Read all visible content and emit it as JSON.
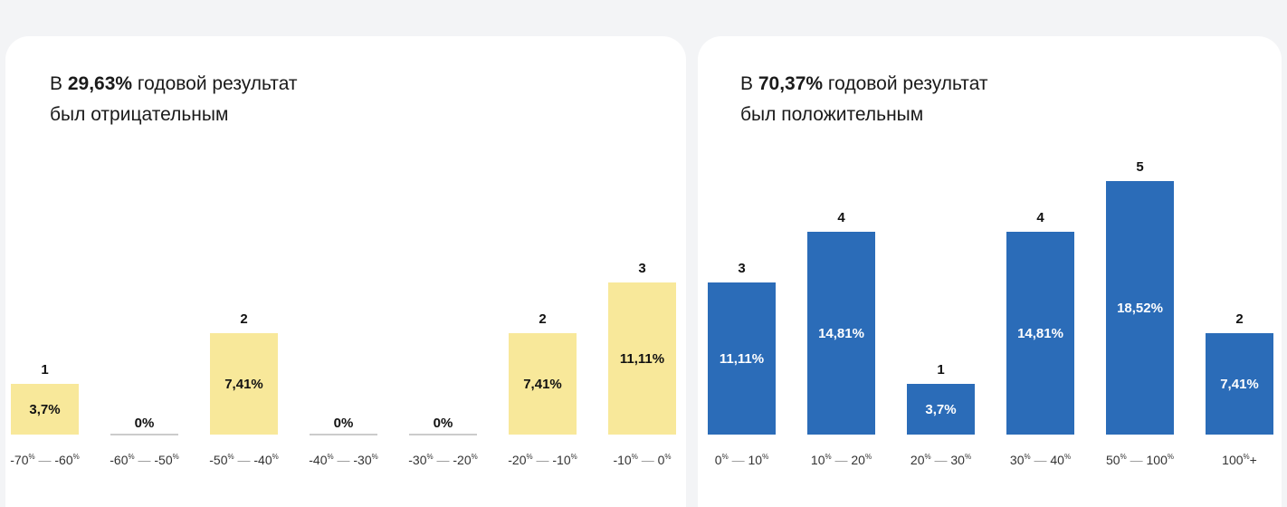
{
  "colors": {
    "negative_bar": "#f8e89a",
    "positive_bar": "#2b6cb8",
    "zero_line": "#999999",
    "negative_pct_text": "#111111",
    "positive_pct_text": "#ffffff"
  },
  "left": {
    "headline_prefix": "В ",
    "headline_value": "29,63%",
    "headline_line1_suffix": " годовой результат",
    "headline_line2": "был отрицательным"
  },
  "right": {
    "headline_prefix": "В ",
    "headline_value": "70,37%",
    "headline_line1_suffix": " годовой результат",
    "headline_line2": "был положительным"
  },
  "chart_data": [
    {
      "type": "bar",
      "categories": [
        "-70% — -60%",
        "-60% — -50%",
        "-50% — -40%",
        "-40% — -30%",
        "-30% — -20%",
        "-20% — -10%",
        "-10% — 0%"
      ],
      "ticks": [
        {
          "from": "-70",
          "to": "-60"
        },
        {
          "from": "-60",
          "to": "-50"
        },
        {
          "from": "-50",
          "to": "-40"
        },
        {
          "from": "-40",
          "to": "-30"
        },
        {
          "from": "-30",
          "to": "-20"
        },
        {
          "from": "-20",
          "to": "-10"
        },
        {
          "from": "-10",
          "to": "0"
        }
      ],
      "values": [
        1,
        0,
        2,
        0,
        0,
        2,
        3
      ],
      "count_labels": [
        "1",
        "",
        "2",
        "",
        "",
        "2",
        "3"
      ],
      "percent_labels": [
        "3,7%",
        "0%",
        "7,41%",
        "0%",
        "0%",
        "7,41%",
        "11,11%"
      ],
      "ylim": [
        0,
        5
      ]
    },
    {
      "type": "bar",
      "categories": [
        "0% — 10%",
        "10% — 20%",
        "20% — 30%",
        "30% — 40%",
        "50% — 100%",
        "100%+"
      ],
      "ticks": [
        {
          "from": "0",
          "to": "10"
        },
        {
          "from": "10",
          "to": "20"
        },
        {
          "from": "20",
          "to": "30"
        },
        {
          "from": "30",
          "to": "40"
        },
        {
          "from": "50",
          "to": "100"
        },
        {
          "from": "100",
          "to": "",
          "suffix": "+"
        }
      ],
      "values": [
        3,
        4,
        1,
        4,
        5,
        2
      ],
      "count_labels": [
        "3",
        "4",
        "1",
        "4",
        "5",
        "2"
      ],
      "percent_labels": [
        "11,11%",
        "14,81%",
        "3,7%",
        "14,81%",
        "18,52%",
        "7,41%"
      ],
      "ylim": [
        0,
        5
      ]
    }
  ]
}
